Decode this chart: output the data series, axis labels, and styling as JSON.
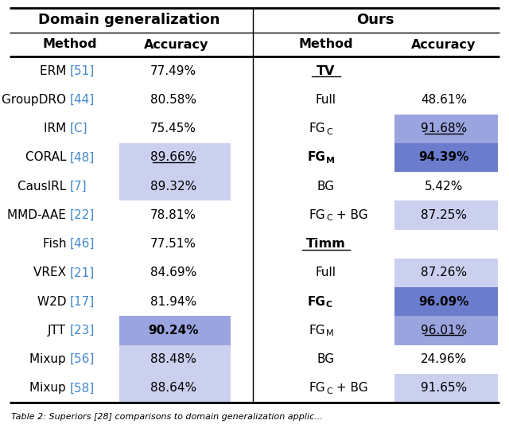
{
  "title_left": "Domain generalization",
  "title_right": "Ours",
  "col_headers_left": [
    "Method",
    "Accuracy"
  ],
  "col_headers_right": [
    "Method",
    "Accuracy"
  ],
  "left_rows": [
    {
      "method_base": "ERM ",
      "method_cite": "[51]",
      "accuracy": "77.49%",
      "bg": null,
      "bold": false,
      "underline": false
    },
    {
      "method_base": "GroupDRO ",
      "method_cite": "[44]",
      "accuracy": "80.58%",
      "bg": null,
      "bold": false,
      "underline": false
    },
    {
      "method_base": "IRM ",
      "method_cite": "[C]",
      "accuracy": "75.45%",
      "bg": null,
      "bold": false,
      "underline": false
    },
    {
      "method_base": "CORAL ",
      "method_cite": "[48]",
      "accuracy": "89.66%",
      "bg": "light",
      "bold": false,
      "underline": true
    },
    {
      "method_base": "CausIRL ",
      "method_cite": "[7]",
      "accuracy": "89.32%",
      "bg": "light",
      "bold": false,
      "underline": false
    },
    {
      "method_base": "MMD-AAE ",
      "method_cite": "[22]",
      "accuracy": "78.81%",
      "bg": null,
      "bold": false,
      "underline": false
    },
    {
      "method_base": "Fish ",
      "method_cite": "[46]",
      "accuracy": "77.51%",
      "bg": null,
      "bold": false,
      "underline": false
    },
    {
      "method_base": "VREX ",
      "method_cite": "[21]",
      "accuracy": "84.69%",
      "bg": null,
      "bold": false,
      "underline": false
    },
    {
      "method_base": "W2D ",
      "method_cite": "[17]",
      "accuracy": "81.94%",
      "bg": null,
      "bold": false,
      "underline": false
    },
    {
      "method_base": "JTT ",
      "method_cite": "[23]",
      "accuracy": "90.24%",
      "bg": "medium",
      "bold": true,
      "underline": false
    },
    {
      "method_base": "Mixup ",
      "method_cite": "[56]",
      "accuracy": "88.48%",
      "bg": "light",
      "bold": false,
      "underline": false
    },
    {
      "method_base": "Mixup ",
      "method_cite": "[58]",
      "accuracy": "88.64%",
      "bg": "light",
      "bold": false,
      "underline": false
    }
  ],
  "right_rows": [
    {
      "type": "section",
      "label": "TV"
    },
    {
      "type": "data",
      "method": "Full",
      "accuracy": "48.61%",
      "bg": null,
      "bold": false,
      "underline": false
    },
    {
      "type": "data",
      "method": "FG_C",
      "accuracy": "91.68%",
      "bg": "medium",
      "bold": false,
      "underline": true
    },
    {
      "type": "data",
      "method": "FG_M",
      "accuracy": "94.39%",
      "bg": "dark",
      "bold": true,
      "underline": false
    },
    {
      "type": "data",
      "method": "BG",
      "accuracy": "5.42%",
      "bg": null,
      "bold": false,
      "underline": false
    },
    {
      "type": "data",
      "method": "FG_C + BG",
      "accuracy": "87.25%",
      "bg": "light",
      "bold": false,
      "underline": false
    },
    {
      "type": "section",
      "label": "Timm"
    },
    {
      "type": "data",
      "method": "Full",
      "accuracy": "87.26%",
      "bg": "light",
      "bold": false,
      "underline": false
    },
    {
      "type": "data",
      "method": "FG_C",
      "accuracy": "96.09%",
      "bg": "dark",
      "bold": true,
      "underline": false
    },
    {
      "type": "data",
      "method": "FG_M",
      "accuracy": "96.01%",
      "bg": "medium",
      "bold": false,
      "underline": true
    },
    {
      "type": "data",
      "method": "BG",
      "accuracy": "24.96%",
      "bg": null,
      "bold": false,
      "underline": false
    },
    {
      "type": "data",
      "method": "FG_C + BG",
      "accuracy": "91.65%",
      "bg": "light",
      "bold": false,
      "underline": false
    }
  ],
  "bg_colors": {
    "light": "#ccd0ef",
    "medium": "#9aa4de",
    "dark": "#6b7ccc"
  },
  "blue_ref_color": "#4488cc",
  "caption": "Table 2: Superiors [28] comparisons to domain generalization applic..."
}
